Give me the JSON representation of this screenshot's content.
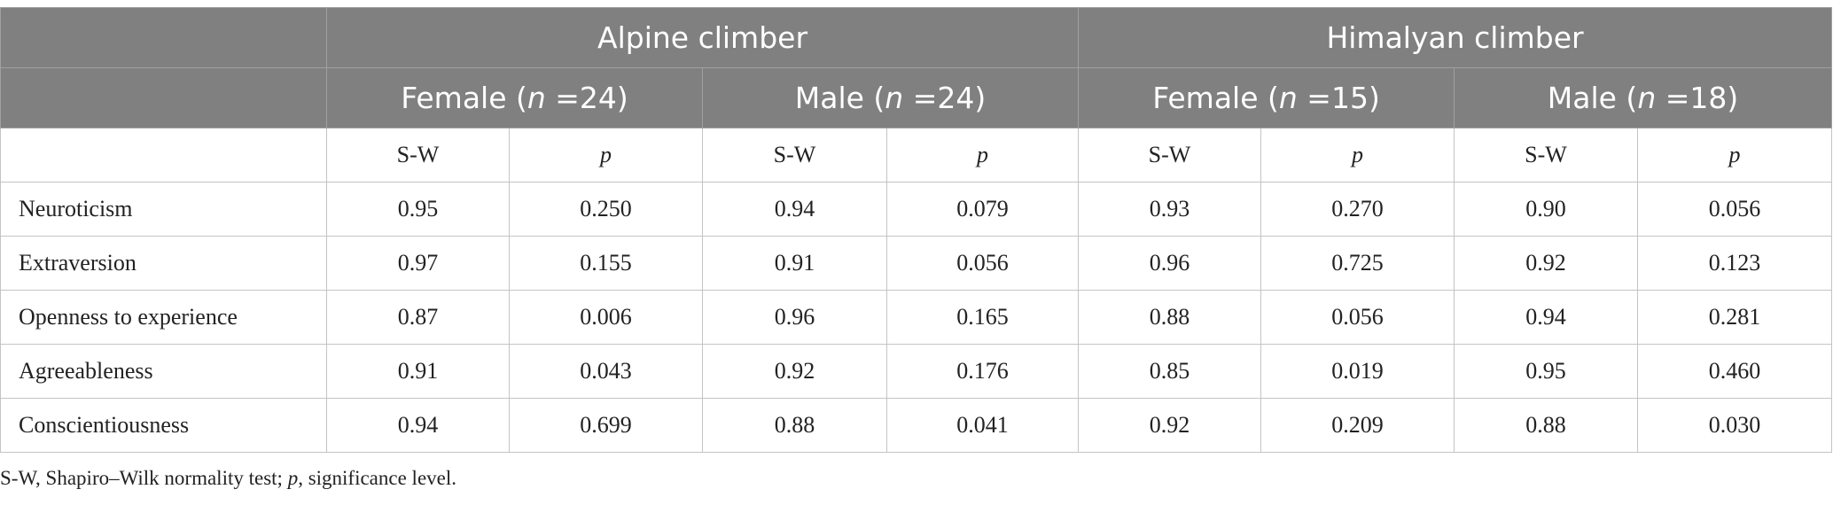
{
  "groups": [
    "Alpine climber",
    "Himalyan climber"
  ],
  "subgroups": [
    {
      "label": "Female (",
      "n": "n",
      "rest": " =24)"
    },
    {
      "label": "Male (",
      "n": "n",
      "rest": " =24)"
    },
    {
      "label": "Female (",
      "n": "n",
      "rest": " =15)"
    },
    {
      "label": "Male (",
      "n": "n",
      "rest": " =18)"
    }
  ],
  "stat_labels": {
    "sw": "S-W",
    "p": "p"
  },
  "rows": [
    {
      "label": "Neuroticism",
      "values": [
        "0.95",
        "0.250",
        "0.94",
        "0.079",
        "0.93",
        "0.270",
        "0.90",
        "0.056"
      ]
    },
    {
      "label": "Extraversion",
      "values": [
        "0.97",
        "0.155",
        "0.91",
        "0.056",
        "0.96",
        "0.725",
        "0.92",
        "0.123"
      ]
    },
    {
      "label": "Openness to experience",
      "values": [
        "0.87",
        "0.006",
        "0.96",
        "0.165",
        "0.88",
        "0.056",
        "0.94",
        "0.281"
      ]
    },
    {
      "label": "Agreeableness",
      "values": [
        "0.91",
        "0.043",
        "0.92",
        "0.176",
        "0.85",
        "0.019",
        "0.95",
        "0.460"
      ]
    },
    {
      "label": "Conscientiousness",
      "values": [
        "0.94",
        "0.699",
        "0.88",
        "0.041",
        "0.92",
        "0.209",
        "0.88",
        "0.030"
      ]
    }
  ],
  "footnote": {
    "part1": "S-W, Shapiro–Wilk normality test; ",
    "p": "p",
    "part2": ", significance level."
  },
  "colors": {
    "header_bg": "#808080",
    "header_text": "#ffffff",
    "border": "#c4c4c4"
  }
}
